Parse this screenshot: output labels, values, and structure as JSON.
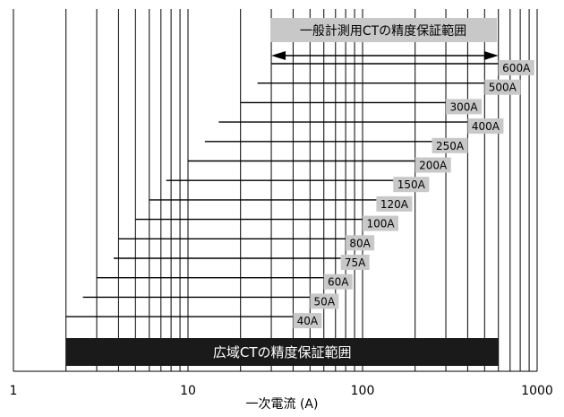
{
  "chart_data": {
    "type": "range-bar",
    "x_scale": "log",
    "x_range": [
      1,
      1000
    ],
    "x_ticks": [
      {
        "value": 1,
        "label": "1"
      },
      {
        "value": 10,
        "label": "10"
      },
      {
        "value": 100,
        "label": "100"
      },
      {
        "value": 1000,
        "label": "1000"
      }
    ],
    "xlabel": "一次電流 (A)",
    "grid": true,
    "general_ct_band": {
      "label": "一般計測用CTの精度保証範囲",
      "from": 30,
      "to": 600
    },
    "wide_ct_band": {
      "label": "広域CTの精度保証範囲",
      "from": 2,
      "to": 600
    },
    "ranges": [
      {
        "label": "600A",
        "from": 30,
        "to": 600
      },
      {
        "label": "500A",
        "from": 25,
        "to": 500
      },
      {
        "label": "300A",
        "from": 20,
        "to": 300
      },
      {
        "label": "400A",
        "from": 15,
        "to": 400
      },
      {
        "label": "250A",
        "from": 12.5,
        "to": 250
      },
      {
        "label": "200A",
        "from": 10,
        "to": 200
      },
      {
        "label": "150A",
        "from": 7.5,
        "to": 150
      },
      {
        "label": "120A",
        "from": 6,
        "to": 120
      },
      {
        "label": "100A",
        "from": 5,
        "to": 100
      },
      {
        "label": "80A",
        "from": 4,
        "to": 80
      },
      {
        "label": "75A",
        "from": 3.75,
        "to": 75
      },
      {
        "label": "60A",
        "from": 3,
        "to": 60
      },
      {
        "label": "50A",
        "from": 2.5,
        "to": 50
      },
      {
        "label": "40A",
        "from": 2,
        "to": 40
      }
    ],
    "colors": {
      "label_bg": "#c8c8c8",
      "band_bg": "#1a1a1a",
      "band_text": "#ffffff",
      "line": "#000000"
    }
  }
}
